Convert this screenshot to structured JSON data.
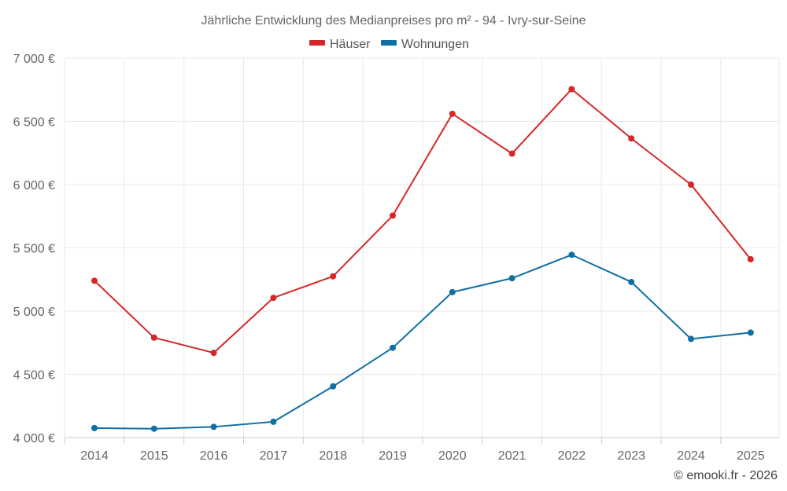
{
  "chart_data": {
    "type": "line",
    "title": "Jährliche Entwicklung des Medianpreises pro m² - 94 - Ivry-sur-Seine",
    "categories": [
      "2014",
      "2015",
      "2016",
      "2017",
      "2018",
      "2019",
      "2020",
      "2021",
      "2022",
      "2023",
      "2024",
      "2025"
    ],
    "series": [
      {
        "name": "Häuser",
        "color": "#d62728",
        "values": [
          5240,
          4790,
          4670,
          5105,
          5275,
          5755,
          6560,
          6245,
          6755,
          6365,
          6000,
          5410
        ]
      },
      {
        "name": "Wohnungen",
        "color": "#0f6fa4",
        "values": [
          4075,
          4070,
          4085,
          4125,
          4405,
          4710,
          5150,
          5260,
          5445,
          5230,
          4780,
          4830
        ]
      }
    ],
    "ylim": [
      4000,
      7000
    ],
    "yticks": [
      4000,
      4500,
      5000,
      5500,
      6000,
      6500,
      7000
    ],
    "ytick_labels": [
      "4 000 €",
      "4 500 €",
      "5 000 €",
      "5 500 €",
      "6 000 €",
      "6 500 €",
      "7 000 €"
    ],
    "xlabel": "",
    "ylabel": "",
    "grid": true,
    "legend_position": "top-center"
  },
  "credit": "© emooki.fr - 2026"
}
